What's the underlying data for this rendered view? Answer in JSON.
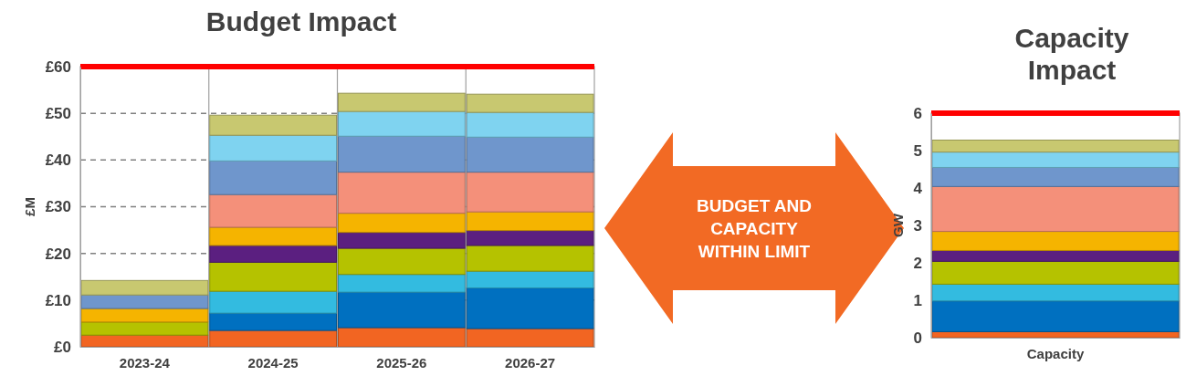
{
  "chart_data": [
    {
      "type": "bar",
      "title": "Budget Impact",
      "ylabel": "£M",
      "stacked": true,
      "grid": "y",
      "categories": [
        "2023-24",
        "2024-25",
        "2025-26",
        "2026-27"
      ],
      "ylim": [
        0,
        60
      ],
      "yticks": [
        {
          "value": 0,
          "label": "£0"
        },
        {
          "value": 10,
          "label": "£10"
        },
        {
          "value": 20,
          "label": "£20"
        },
        {
          "value": 30,
          "label": "£30"
        },
        {
          "value": 40,
          "label": "£40"
        },
        {
          "value": 50,
          "label": "£50"
        },
        {
          "value": 60,
          "label": "£60"
        }
      ],
      "ref_lines": [
        {
          "axis": "y",
          "value": 60,
          "color": "#ff0000"
        }
      ],
      "series": [
        {
          "color": "#f26522",
          "values": [
            2.5,
            3.5,
            4.1,
            3.9
          ]
        },
        {
          "color": "#0070c0",
          "values": [
            0,
            3.7,
            7.6,
            8.7
          ]
        },
        {
          "color": "#33bbe0",
          "values": [
            0,
            4.7,
            3.8,
            3.6
          ]
        },
        {
          "color": "#b5c200",
          "values": [
            2.8,
            6.2,
            5.6,
            5.5
          ]
        },
        {
          "color": "#5b1f80",
          "values": [
            0,
            3.6,
            3.4,
            3.2
          ]
        },
        {
          "color": "#f5b400",
          "values": [
            2.9,
            3.9,
            4.1,
            4.0
          ]
        },
        {
          "color": "#f4907a",
          "values": [
            0,
            7.0,
            8.8,
            8.5
          ]
        },
        {
          "color": "#6f96cc",
          "values": [
            2.9,
            7.2,
            7.7,
            7.5
          ]
        },
        {
          "color": "#7fd3f0",
          "values": [
            0,
            5.5,
            5.3,
            5.3
          ]
        },
        {
          "color": "#c8c870",
          "values": [
            3.1,
            4.3,
            3.9,
            3.9
          ]
        }
      ]
    },
    {
      "type": "other",
      "annotations": [
        "BUDGET AND CAPACITY WITHIN LIMIT"
      ]
    },
    {
      "type": "bar",
      "title": "Capacity Impact",
      "ylabel": "GW",
      "stacked": true,
      "categories": [
        "Capacity"
      ],
      "ylim": [
        0,
        6
      ],
      "yticks": [
        0,
        1,
        2,
        3,
        4,
        5,
        6
      ],
      "ref_lines": [
        {
          "axis": "y",
          "value": 6,
          "color": "#ff0000"
        }
      ],
      "series": [
        {
          "color": "#f26522",
          "values": [
            0.16
          ]
        },
        {
          "color": "#0070c0",
          "values": [
            0.82
          ]
        },
        {
          "color": "#33bbe0",
          "values": [
            0.45
          ]
        },
        {
          "color": "#b5c200",
          "values": [
            0.61
          ]
        },
        {
          "color": "#5b1f80",
          "values": [
            0.29
          ]
        },
        {
          "color": "#f5b400",
          "values": [
            0.51
          ]
        },
        {
          "color": "#f4907a",
          "values": [
            1.2
          ]
        },
        {
          "color": "#6f96cc",
          "values": [
            0.51
          ]
        },
        {
          "color": "#7fd3f0",
          "values": [
            0.41
          ]
        },
        {
          "color": "#c8c870",
          "values": [
            0.32
          ]
        }
      ]
    }
  ]
}
